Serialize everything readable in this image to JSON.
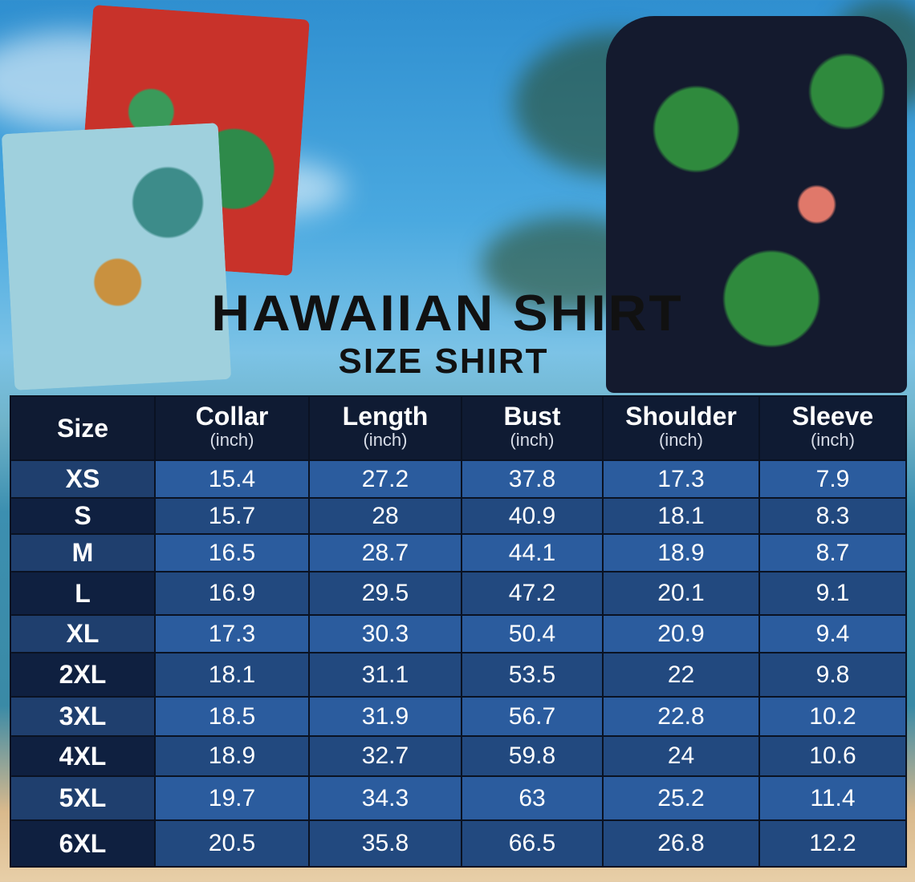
{
  "title": "HAWAIIAN SHIRT",
  "subtitle": "SIZE SHIRT",
  "table": {
    "headers": [
      {
        "label": "Size",
        "unit": ""
      },
      {
        "label": "Collar",
        "unit": "(inch)"
      },
      {
        "label": "Length",
        "unit": "(inch)"
      },
      {
        "label": "Bust",
        "unit": "(inch)"
      },
      {
        "label": "Shoulder",
        "unit": "(inch)"
      },
      {
        "label": "Sleeve",
        "unit": "(inch)"
      }
    ],
    "rows": [
      [
        "XS",
        "15.4",
        "27.2",
        "37.8",
        "17.3",
        "7.9"
      ],
      [
        "S",
        "15.7",
        "28",
        "40.9",
        "18.1",
        "8.3"
      ],
      [
        "M",
        "16.5",
        "28.7",
        "44.1",
        "18.9",
        "8.7"
      ],
      [
        "L",
        "16.9",
        "29.5",
        "47.2",
        "20.1",
        "9.1"
      ],
      [
        "XL",
        "17.3",
        "30.3",
        "50.4",
        "20.9",
        "9.4"
      ],
      [
        "2XL",
        "18.1",
        "31.1",
        "53.5",
        "22",
        "9.8"
      ],
      [
        "3XL",
        "18.5",
        "31.9",
        "56.7",
        "22.8",
        "10.2"
      ],
      [
        "4XL",
        "18.9",
        "32.7",
        "59.8",
        "24",
        "10.6"
      ],
      [
        "5XL",
        "19.7",
        "34.3",
        "63",
        "25.2",
        "11.4"
      ],
      [
        "6XL",
        "20.5",
        "35.8",
        "66.5",
        "26.8",
        "12.2"
      ]
    ]
  },
  "colors": {
    "header": "#0f1b33",
    "row_light": "#2b5c9e",
    "row_dark": "#22497f"
  }
}
